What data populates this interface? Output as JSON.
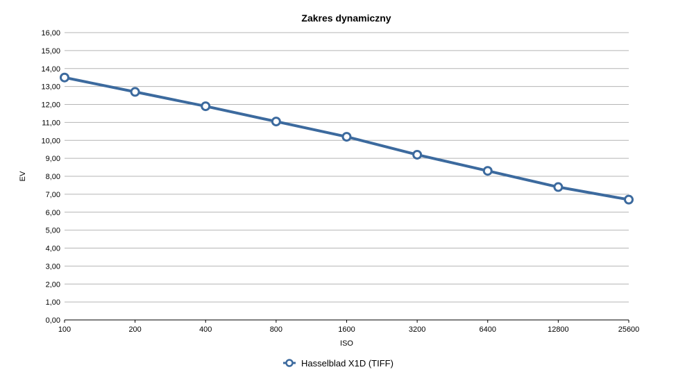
{
  "chart_data": {
    "type": "line",
    "title": "Zakres dynamiczny",
    "xlabel": "ISO",
    "ylabel": "EV",
    "categories": [
      "100",
      "200",
      "400",
      "800",
      "1600",
      "3200",
      "6400",
      "12800",
      "25600"
    ],
    "y_ticks": [
      "0,00",
      "1,00",
      "2,00",
      "3,00",
      "4,00",
      "5,00",
      "6,00",
      "7,00",
      "8,00",
      "9,00",
      "10,00",
      "11,00",
      "12,00",
      "13,00",
      "14,00",
      "15,00",
      "16,00"
    ],
    "ylim": [
      0,
      16
    ],
    "grid": true,
    "legend_position": "bottom",
    "series": [
      {
        "name": "Hasselblad X1D (TIFF)",
        "color": "#3c6a9e",
        "values": [
          13.5,
          12.7,
          11.9,
          11.05,
          10.2,
          9.2,
          8.3,
          7.4,
          6.7
        ]
      }
    ]
  }
}
